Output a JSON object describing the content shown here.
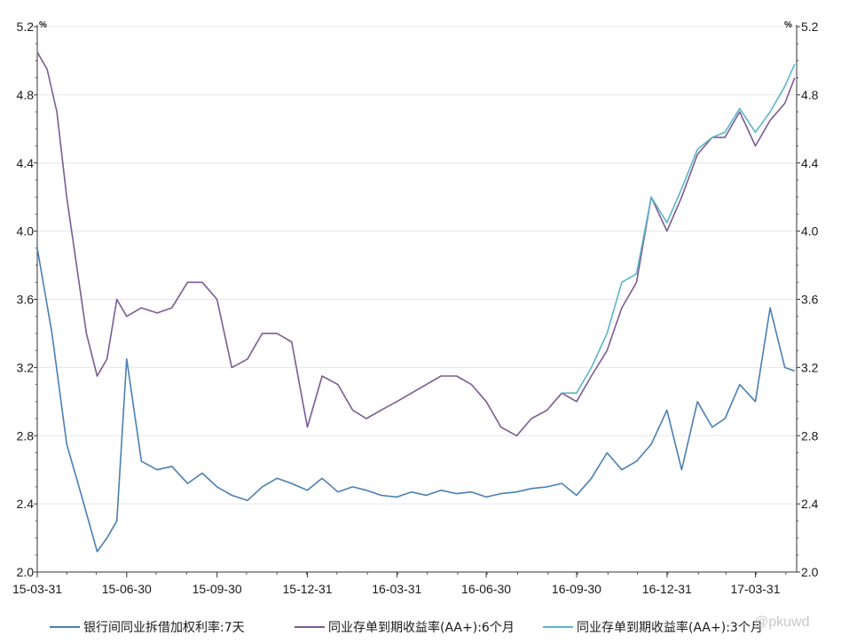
{
  "chart_data": {
    "type": "line",
    "title": "",
    "xlabel": "",
    "ylabel": "",
    "unit_left": "%",
    "unit_right": "%",
    "ylim": [
      2.0,
      5.2
    ],
    "y_ticks": [
      "2.0",
      "2.4",
      "2.8",
      "3.2",
      "3.6",
      "4.0",
      "4.4",
      "4.8",
      "5.2"
    ],
    "x_tick_labels": [
      "15-03-31",
      "15-06-30",
      "15-09-30",
      "15-12-31",
      "16-03-31",
      "16-06-30",
      "16-09-30",
      "16-12-31",
      "17-03-31"
    ],
    "grid": "horizontal",
    "legend_position": "bottom",
    "series": [
      {
        "name": "银行间同业拆借加权利率:7天",
        "color": "#4a7fb5",
        "x": [
          "2015-03-31",
          "2015-04-15",
          "2015-04-30",
          "2015-05-15",
          "2015-05-31",
          "2015-06-10",
          "2015-06-20",
          "2015-06-30",
          "2015-07-15",
          "2015-07-31",
          "2015-08-15",
          "2015-08-31",
          "2015-09-15",
          "2015-09-30",
          "2015-10-15",
          "2015-10-31",
          "2015-11-15",
          "2015-11-30",
          "2015-12-15",
          "2015-12-31",
          "2016-01-15",
          "2016-01-31",
          "2016-02-15",
          "2016-02-29",
          "2016-03-15",
          "2016-03-31",
          "2016-04-15",
          "2016-04-30",
          "2016-05-15",
          "2016-05-31",
          "2016-06-15",
          "2016-06-30",
          "2016-07-15",
          "2016-07-31",
          "2016-08-15",
          "2016-08-31",
          "2016-09-15",
          "2016-09-30",
          "2016-10-15",
          "2016-10-31",
          "2016-11-15",
          "2016-11-30",
          "2016-12-15",
          "2016-12-31",
          "2017-01-15",
          "2017-01-31",
          "2017-02-15",
          "2017-02-28",
          "2017-03-15",
          "2017-03-31",
          "2017-04-15",
          "2017-04-30",
          "2017-05-10"
        ],
        "values": [
          3.9,
          3.4,
          2.75,
          2.45,
          2.12,
          2.2,
          2.3,
          3.25,
          2.65,
          2.6,
          2.62,
          2.52,
          2.58,
          2.5,
          2.45,
          2.42,
          2.5,
          2.55,
          2.52,
          2.48,
          2.55,
          2.47,
          2.5,
          2.48,
          2.45,
          2.44,
          2.47,
          2.45,
          2.48,
          2.46,
          2.47,
          2.44,
          2.46,
          2.47,
          2.49,
          2.5,
          2.52,
          2.45,
          2.55,
          2.7,
          2.6,
          2.65,
          2.75,
          2.95,
          2.6,
          3.0,
          2.85,
          2.9,
          3.1,
          3.0,
          3.55,
          3.2,
          3.18
        ]
      },
      {
        "name": "同业存单到期收益率(AA+):6个月",
        "color": "#7b5b94",
        "x": [
          "2015-03-31",
          "2015-04-10",
          "2015-04-20",
          "2015-04-30",
          "2015-05-10",
          "2015-05-20",
          "2015-05-31",
          "2015-06-10",
          "2015-06-20",
          "2015-06-30",
          "2015-07-15",
          "2015-07-31",
          "2015-08-15",
          "2015-08-31",
          "2015-09-15",
          "2015-09-30",
          "2015-10-15",
          "2015-10-31",
          "2015-11-15",
          "2015-11-30",
          "2015-12-15",
          "2015-12-31",
          "2016-01-15",
          "2016-01-31",
          "2016-02-15",
          "2016-02-29",
          "2016-03-15",
          "2016-03-31",
          "2016-04-15",
          "2016-04-30",
          "2016-05-15",
          "2016-05-31",
          "2016-06-15",
          "2016-06-30",
          "2016-07-15",
          "2016-07-31",
          "2016-08-15",
          "2016-08-31",
          "2016-09-15",
          "2016-09-30",
          "2016-10-15",
          "2016-10-31",
          "2016-11-15",
          "2016-11-30",
          "2016-12-15",
          "2016-12-31",
          "2017-01-15",
          "2017-01-31",
          "2017-02-15",
          "2017-02-28",
          "2017-03-15",
          "2017-03-31",
          "2017-04-15",
          "2017-04-30",
          "2017-05-10"
        ],
        "values": [
          5.05,
          4.95,
          4.7,
          4.2,
          3.8,
          3.4,
          3.15,
          3.25,
          3.6,
          3.5,
          3.55,
          3.52,
          3.55,
          3.7,
          3.7,
          3.6,
          3.2,
          3.25,
          3.4,
          3.4,
          3.35,
          2.85,
          3.15,
          3.1,
          2.95,
          2.9,
          2.95,
          3.0,
          3.05,
          3.1,
          3.15,
          3.15,
          3.1,
          3.0,
          2.85,
          2.8,
          2.9,
          2.95,
          3.05,
          3.0,
          3.15,
          3.3,
          3.55,
          3.7,
          4.2,
          4.0,
          4.2,
          4.45,
          4.55,
          4.55,
          4.7,
          4.5,
          4.65,
          4.75,
          4.9
        ]
      },
      {
        "name": "同业存单到期收益率(AA+):3个月",
        "color": "#5bb5c8",
        "x": [
          "2016-09-15",
          "2016-09-30",
          "2016-10-15",
          "2016-10-31",
          "2016-11-15",
          "2016-11-30",
          "2016-12-15",
          "2016-12-31",
          "2017-01-15",
          "2017-01-31",
          "2017-02-15",
          "2017-02-28",
          "2017-03-15",
          "2017-03-31",
          "2017-04-15",
          "2017-04-30",
          "2017-05-10"
        ],
        "values": [
          3.05,
          3.05,
          3.2,
          3.4,
          3.7,
          3.75,
          4.2,
          4.05,
          4.25,
          4.48,
          4.55,
          4.58,
          4.72,
          4.58,
          4.7,
          4.85,
          4.98
        ]
      }
    ]
  },
  "watermark": "@pkuwd"
}
